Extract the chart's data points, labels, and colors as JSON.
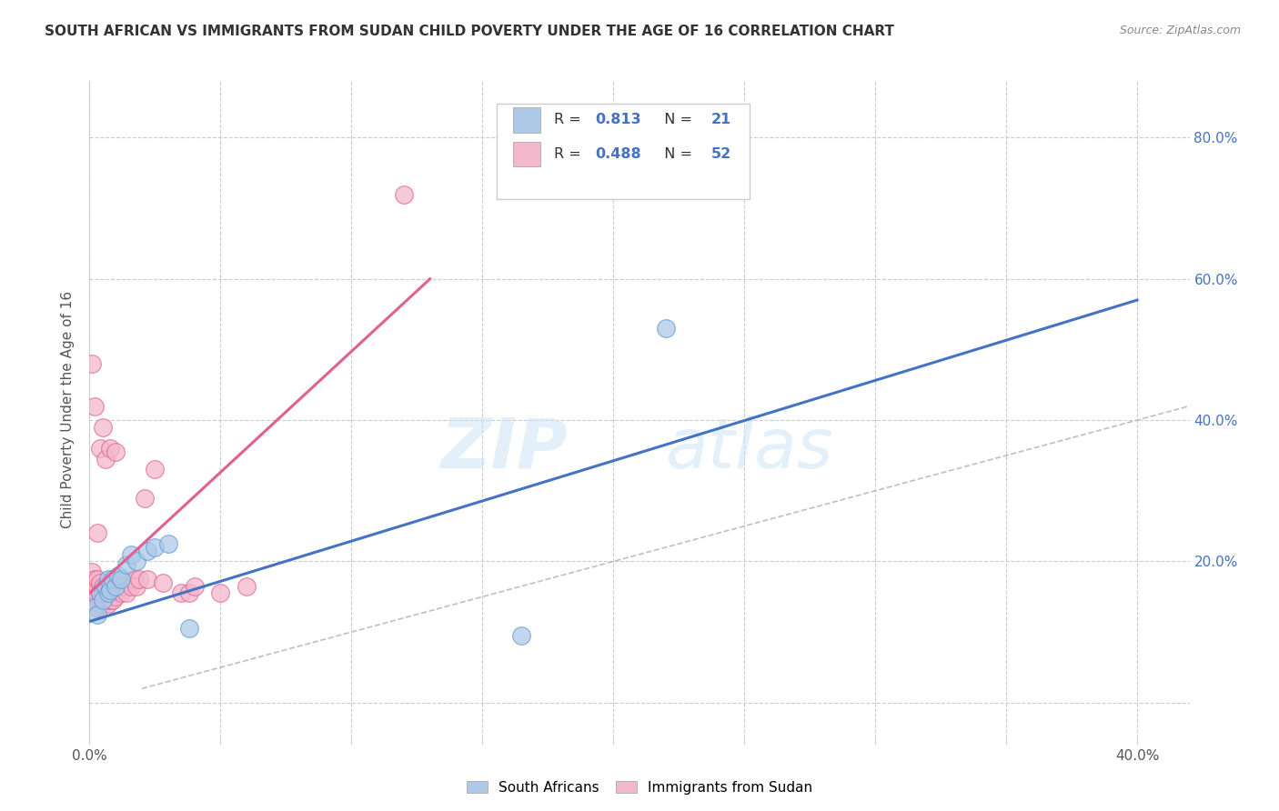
{
  "title": "SOUTH AFRICAN VS IMMIGRANTS FROM SUDAN CHILD POVERTY UNDER THE AGE OF 16 CORRELATION CHART",
  "source": "Source: ZipAtlas.com",
  "ylabel": "Child Poverty Under the Age of 16",
  "watermark_zip": "ZIP",
  "watermark_atlas": "atlas",
  "xlim": [
    0.0,
    0.42
  ],
  "ylim": [
    -0.05,
    0.88
  ],
  "xticks": [
    0.0,
    0.05,
    0.1,
    0.15,
    0.2,
    0.25,
    0.3,
    0.35,
    0.4
  ],
  "ytick_positions": [
    0.0,
    0.2,
    0.4,
    0.6,
    0.8
  ],
  "ytick_labels": [
    "",
    "20.0%",
    "40.0%",
    "60.0%",
    "80.0%"
  ],
  "grid_color": "#cccccc",
  "background_color": "#ffffff",
  "blue_fill": "#aec9e8",
  "blue_edge": "#5b9bd5",
  "pink_fill": "#f4b8cc",
  "pink_edge": "#e06090",
  "blue_line_color": "#4472c4",
  "pink_line_color": "#e06090",
  "blue_label": "South Africans",
  "pink_label": "Immigrants from Sudan",
  "blue_R": "0.813",
  "blue_N": "21",
  "pink_R": "0.488",
  "pink_N": "52",
  "blue_scatter_x": [
    0.002,
    0.003,
    0.004,
    0.005,
    0.006,
    0.007,
    0.007,
    0.008,
    0.009,
    0.01,
    0.011,
    0.012,
    0.014,
    0.016,
    0.018,
    0.022,
    0.025,
    0.03,
    0.038,
    0.165,
    0.22
  ],
  "blue_scatter_y": [
    0.135,
    0.125,
    0.155,
    0.145,
    0.165,
    0.155,
    0.175,
    0.16,
    0.175,
    0.165,
    0.18,
    0.175,
    0.195,
    0.21,
    0.2,
    0.215,
    0.22,
    0.225,
    0.105,
    0.095,
    0.53
  ],
  "pink_scatter_x": [
    0.001,
    0.001,
    0.001,
    0.001,
    0.002,
    0.002,
    0.002,
    0.002,
    0.003,
    0.003,
    0.003,
    0.003,
    0.003,
    0.004,
    0.004,
    0.004,
    0.004,
    0.005,
    0.005,
    0.005,
    0.005,
    0.006,
    0.006,
    0.006,
    0.007,
    0.007,
    0.007,
    0.008,
    0.008,
    0.009,
    0.009,
    0.01,
    0.01,
    0.011,
    0.012,
    0.013,
    0.014,
    0.015,
    0.016,
    0.017,
    0.018,
    0.019,
    0.021,
    0.022,
    0.025,
    0.028,
    0.035,
    0.038,
    0.04,
    0.05,
    0.06,
    0.12
  ],
  "pink_scatter_y": [
    0.155,
    0.17,
    0.185,
    0.48,
    0.145,
    0.16,
    0.175,
    0.42,
    0.135,
    0.15,
    0.165,
    0.175,
    0.24,
    0.14,
    0.155,
    0.17,
    0.36,
    0.14,
    0.155,
    0.165,
    0.39,
    0.145,
    0.155,
    0.345,
    0.14,
    0.155,
    0.165,
    0.145,
    0.36,
    0.145,
    0.165,
    0.15,
    0.355,
    0.16,
    0.155,
    0.165,
    0.155,
    0.17,
    0.165,
    0.175,
    0.165,
    0.175,
    0.29,
    0.175,
    0.33,
    0.17,
    0.155,
    0.155,
    0.165,
    0.155,
    0.165,
    0.72
  ],
  "blue_line_x": [
    0.0,
    0.4
  ],
  "blue_line_y": [
    0.115,
    0.57
  ],
  "pink_line_x": [
    0.0,
    0.13
  ],
  "pink_line_y": [
    0.155,
    0.6
  ],
  "diag_line_x": [
    0.02,
    0.42
  ],
  "diag_line_y": [
    0.02,
    0.42
  ]
}
